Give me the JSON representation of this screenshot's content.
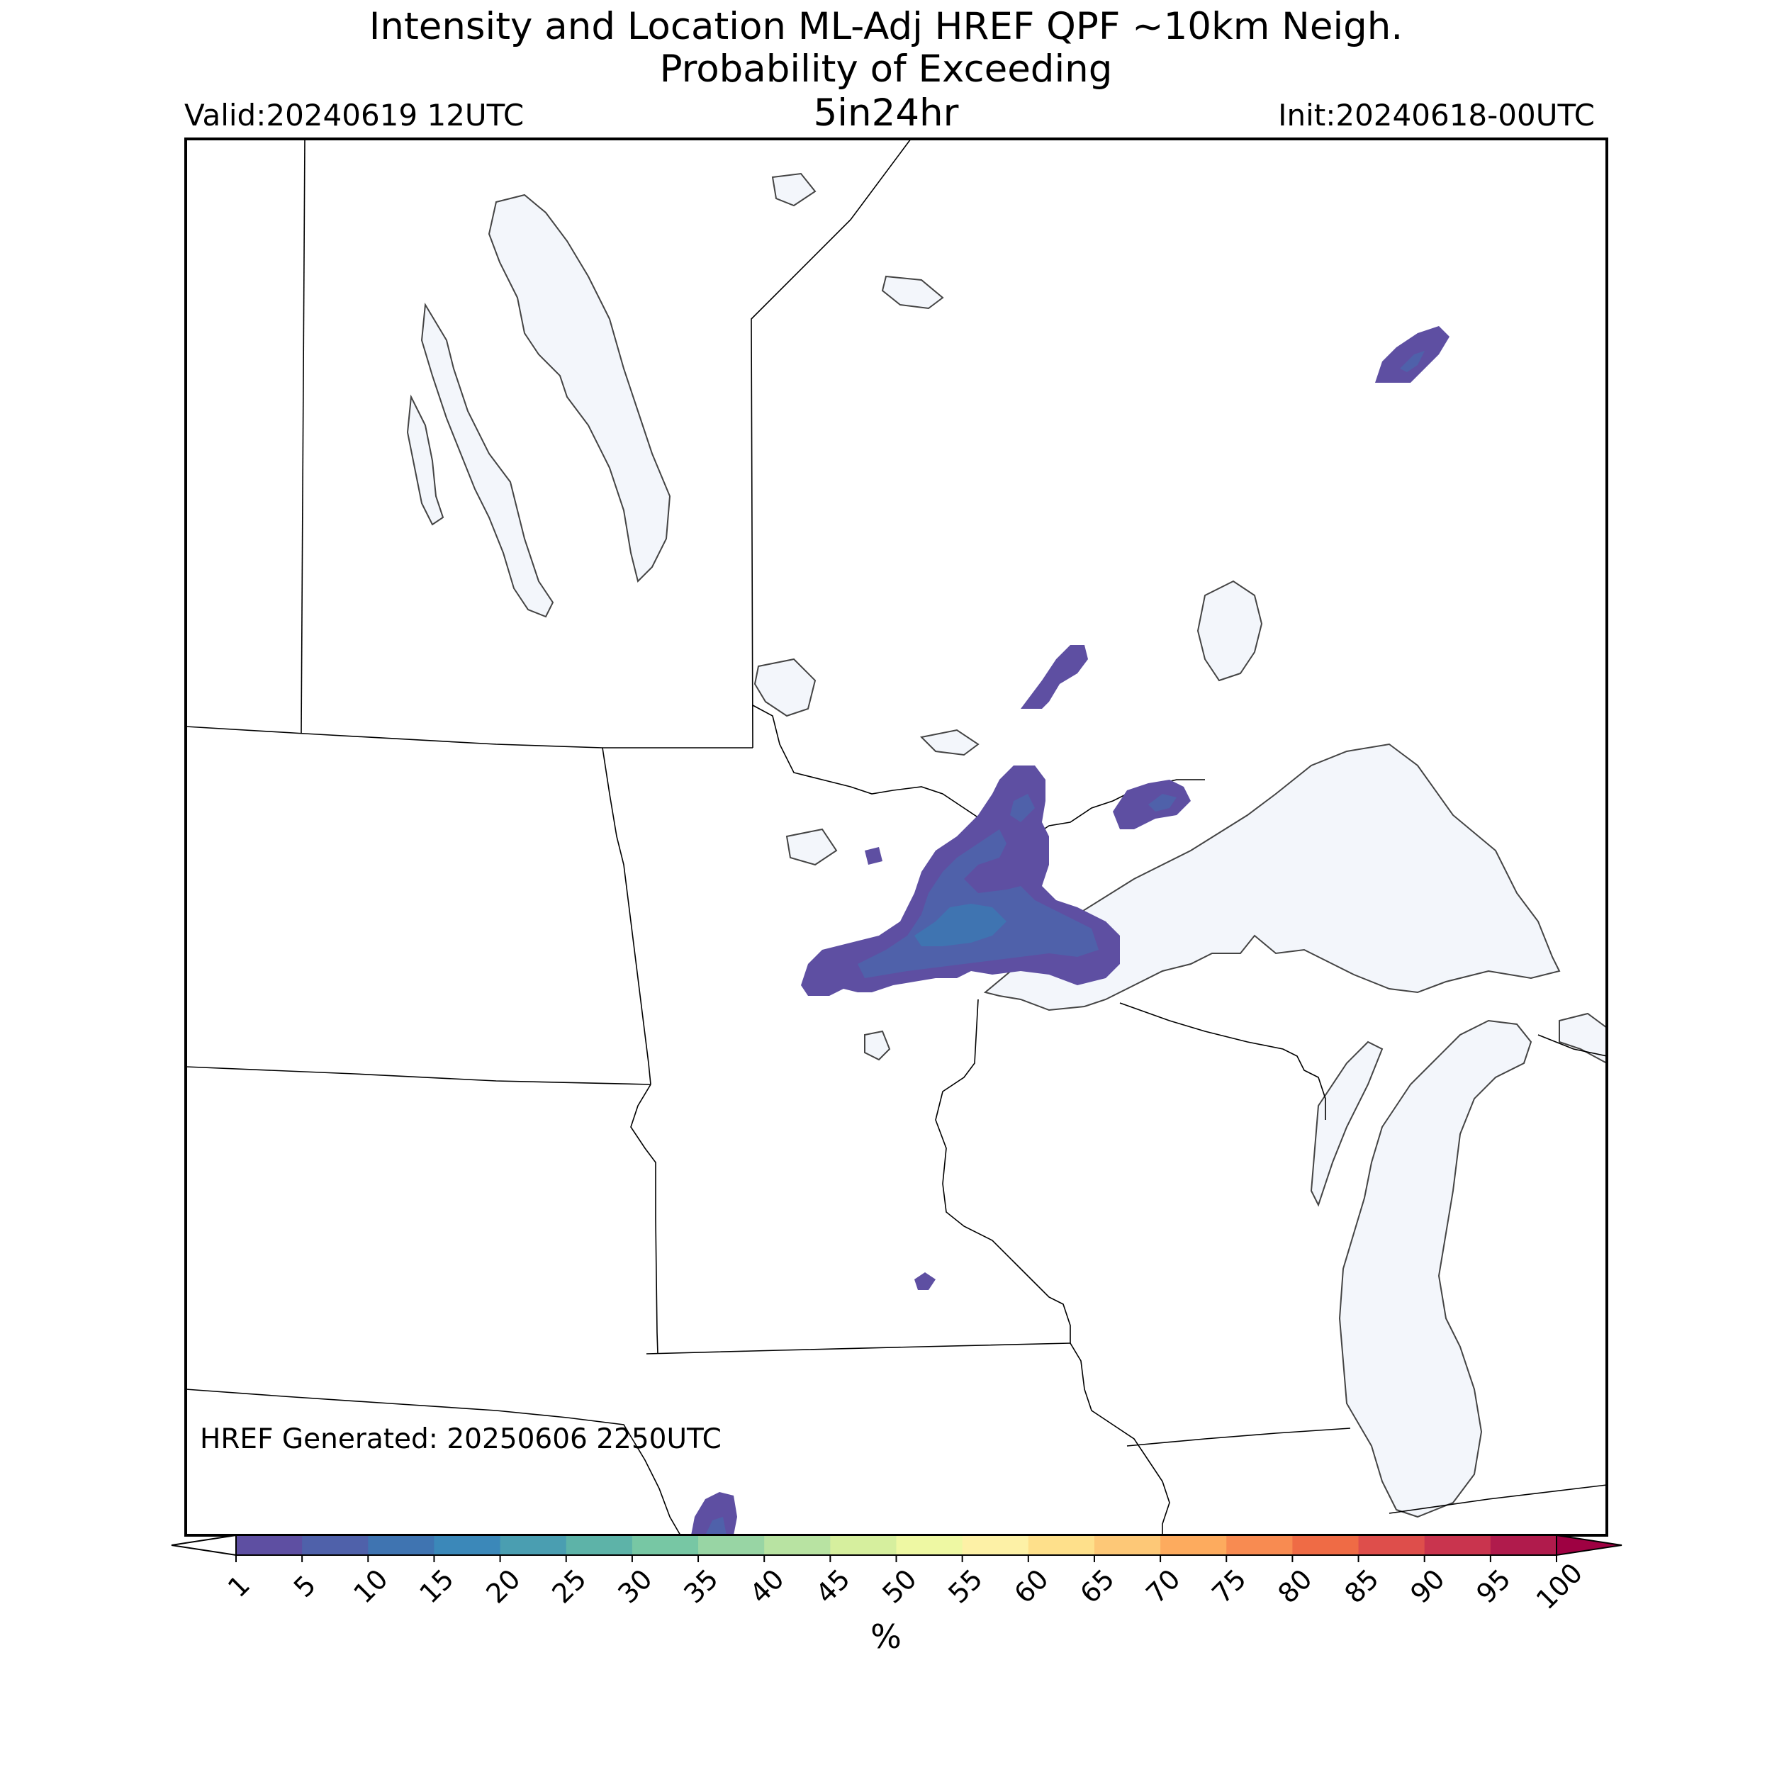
{
  "title": {
    "line1": "Intensity and Location ML-Adj HREF QPF ~10km Neigh.",
    "line2": "Probability of Exceeding",
    "line3": "5in24hr"
  },
  "valid_label": "Valid:20240619 12UTC",
  "init_label": "Init:20240618-00UTC",
  "generated_label": "HREF Generated: 20250606 2250UTC",
  "colorbar": {
    "unit": "%",
    "ticks": [
      "1",
      "5",
      "10",
      "15",
      "20",
      "25",
      "30",
      "35",
      "40",
      "45",
      "50",
      "55",
      "60",
      "65",
      "70",
      "75",
      "80",
      "85",
      "90",
      "95",
      "100"
    ],
    "colors": [
      "#5e4fa2",
      "#4f61aa",
      "#3f74b1",
      "#3b88b9",
      "#4a9eb1",
      "#5db3a8",
      "#77c7a4",
      "#98d5a4",
      "#b8e3a2",
      "#d6ef9e",
      "#eef8a3",
      "#fdf1a6",
      "#fee08b",
      "#fdc877",
      "#fdab5e",
      "#f88b51",
      "#ef6b45",
      "#de4e4b",
      "#c9344e",
      "#b01b4c"
    ],
    "under_color": "#ffffff",
    "over_color": "#9e0142"
  },
  "map_colors": {
    "water": "#f3f6fb",
    "border": "#000000",
    "shoreline": "#444444"
  }
}
